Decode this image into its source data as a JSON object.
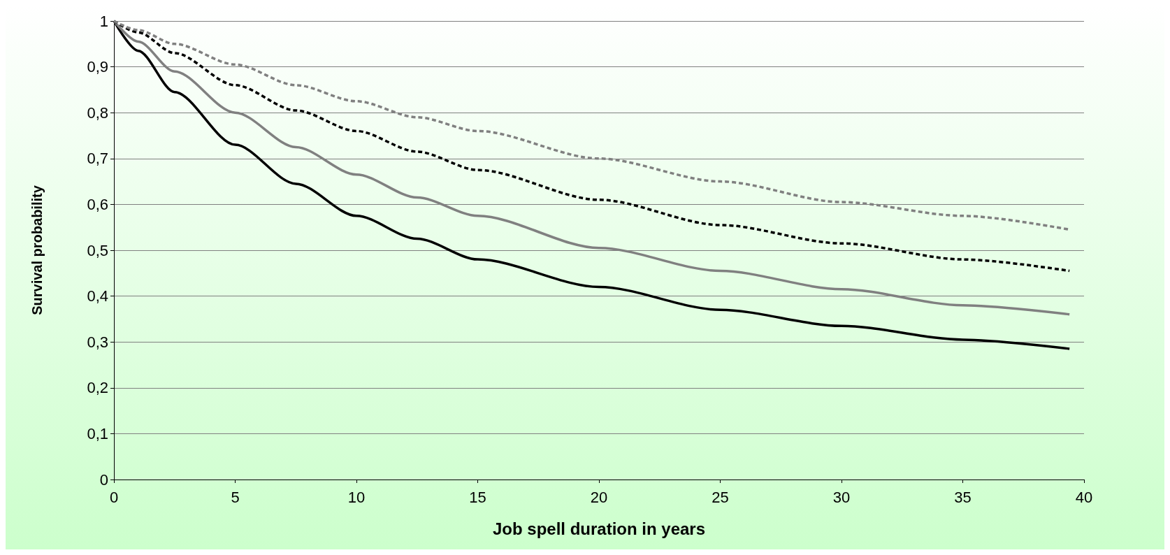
{
  "chart_data": {
    "type": "line",
    "xlabel": "Job spell duration in years",
    "ylabel": "Survival probability",
    "xlim": [
      0,
      40
    ],
    "xticks": [
      0,
      5,
      10,
      15,
      20,
      25,
      30,
      35,
      40
    ],
    "ylim": [
      0,
      1
    ],
    "yticks": [
      0,
      {
        "value": 0.1,
        "label": "0,1"
      },
      {
        "value": 0.2,
        "label": "0,2"
      },
      {
        "value": 0.3,
        "label": "0,3"
      },
      {
        "value": 0.4,
        "label": "0,4"
      },
      {
        "value": 0.5,
        "label": "0,5"
      },
      {
        "value": 0.6,
        "label": "0,6"
      },
      {
        "value": 0.7,
        "label": "0,7"
      },
      {
        "value": 0.8,
        "label": "0,8"
      },
      {
        "value": 0.9,
        "label": "0,9"
      },
      1
    ],
    "grid": "y",
    "marker": "none",
    "x": [
      0,
      1,
      2.5,
      5,
      7.5,
      10,
      12.5,
      15,
      20,
      25,
      30,
      35,
      39.4
    ],
    "series": [
      {
        "color": "#000000",
        "line_style": "solid",
        "values": [
          1,
          0.935,
          0.845,
          0.73,
          0.645,
          0.575,
          0.525,
          0.48,
          0.42,
          0.37,
          0.335,
          0.305,
          0.285
        ]
      },
      {
        "color": "#808080",
        "line_style": "solid",
        "values": [
          1,
          0.955,
          0.89,
          0.8,
          0.725,
          0.665,
          0.615,
          0.575,
          0.505,
          0.455,
          0.415,
          0.38,
          0.36
        ]
      },
      {
        "color": "#000000",
        "line_style": "dashed",
        "values": [
          1,
          0.975,
          0.93,
          0.86,
          0.805,
          0.76,
          0.715,
          0.675,
          0.61,
          0.555,
          0.515,
          0.48,
          0.455
        ]
      },
      {
        "color": "#808080",
        "line_style": "dashed",
        "values": [
          1,
          0.98,
          0.95,
          0.905,
          0.86,
          0.825,
          0.79,
          0.76,
          0.7,
          0.65,
          0.605,
          0.575,
          0.545
        ]
      }
    ]
  }
}
